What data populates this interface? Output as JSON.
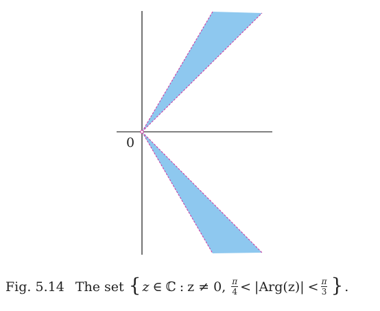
{
  "figure": {
    "origin_label": "0",
    "region": {
      "description_angles_rad": {
        "lower": 0.7853981634,
        "upper": 1.0471975512
      },
      "fill": "#8ec8ef",
      "boundary_color": "#cc2f9b"
    },
    "axes_color": "#000000"
  },
  "caption": {
    "label": "Fig. 5.14",
    "text": "The set",
    "set_var": "z",
    "in": "∈",
    "complex": "ℂ",
    "colon": ":",
    "cond1": "z ≠ 0,",
    "frac1": {
      "num": "π",
      "den": "4"
    },
    "lt": "<",
    "arg": "|Arg(z)|",
    "lt2": "<",
    "frac2": {
      "num": "π",
      "den": "3"
    },
    "end": "."
  }
}
